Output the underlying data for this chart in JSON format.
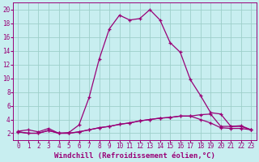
{
  "xlabel": "Windchill (Refroidissement éolien,°C)",
  "background_color": "#c8eef0",
  "grid_color": "#9dcfca",
  "line_color": "#990077",
  "xlim": [
    -0.5,
    23.5
  ],
  "ylim": [
    1.0,
    21.0
  ],
  "yticks": [
    2,
    4,
    6,
    8,
    10,
    12,
    14,
    16,
    18,
    20
  ],
  "xticks": [
    0,
    1,
    2,
    3,
    4,
    5,
    6,
    7,
    8,
    9,
    10,
    11,
    12,
    13,
    14,
    15,
    16,
    17,
    18,
    19,
    20,
    21,
    22,
    23
  ],
  "series1_x": [
    0,
    1,
    2,
    3,
    4,
    5,
    6,
    7,
    8,
    9,
    10,
    11,
    12,
    13,
    14,
    15,
    16,
    17,
    18,
    19,
    20,
    21,
    22,
    23
  ],
  "series1_y": [
    2.3,
    2.5,
    2.2,
    2.7,
    2.0,
    2.1,
    3.2,
    7.2,
    12.8,
    17.2,
    19.2,
    18.5,
    18.7,
    20.0,
    18.5,
    15.2,
    13.8,
    9.8,
    7.5,
    5.0,
    4.8,
    3.0,
    3.1,
    2.5
  ],
  "series2_x": [
    0,
    1,
    2,
    3,
    4,
    5,
    6,
    7,
    8,
    9,
    10,
    11,
    12,
    13,
    14,
    15,
    16,
    17,
    18,
    19,
    20,
    21,
    22,
    23
  ],
  "series2_y": [
    2.2,
    2.0,
    2.0,
    2.4,
    2.0,
    2.0,
    2.2,
    2.5,
    2.8,
    3.0,
    3.3,
    3.5,
    3.8,
    4.0,
    4.2,
    4.3,
    4.5,
    4.5,
    4.7,
    4.8,
    3.0,
    3.0,
    3.0,
    2.5
  ],
  "series3_x": [
    0,
    1,
    2,
    3,
    4,
    5,
    6,
    7,
    8,
    9,
    10,
    11,
    12,
    13,
    14,
    15,
    16,
    17,
    18,
    19,
    20,
    21,
    22,
    23
  ],
  "series3_y": [
    2.2,
    2.0,
    2.0,
    2.4,
    2.0,
    2.0,
    2.2,
    2.5,
    2.8,
    3.0,
    3.3,
    3.5,
    3.8,
    4.0,
    4.2,
    4.3,
    4.5,
    4.5,
    4.0,
    3.5,
    2.8,
    2.7,
    2.7,
    2.5
  ],
  "xlabel_fontsize": 6.5,
  "tick_fontsize": 5.5
}
